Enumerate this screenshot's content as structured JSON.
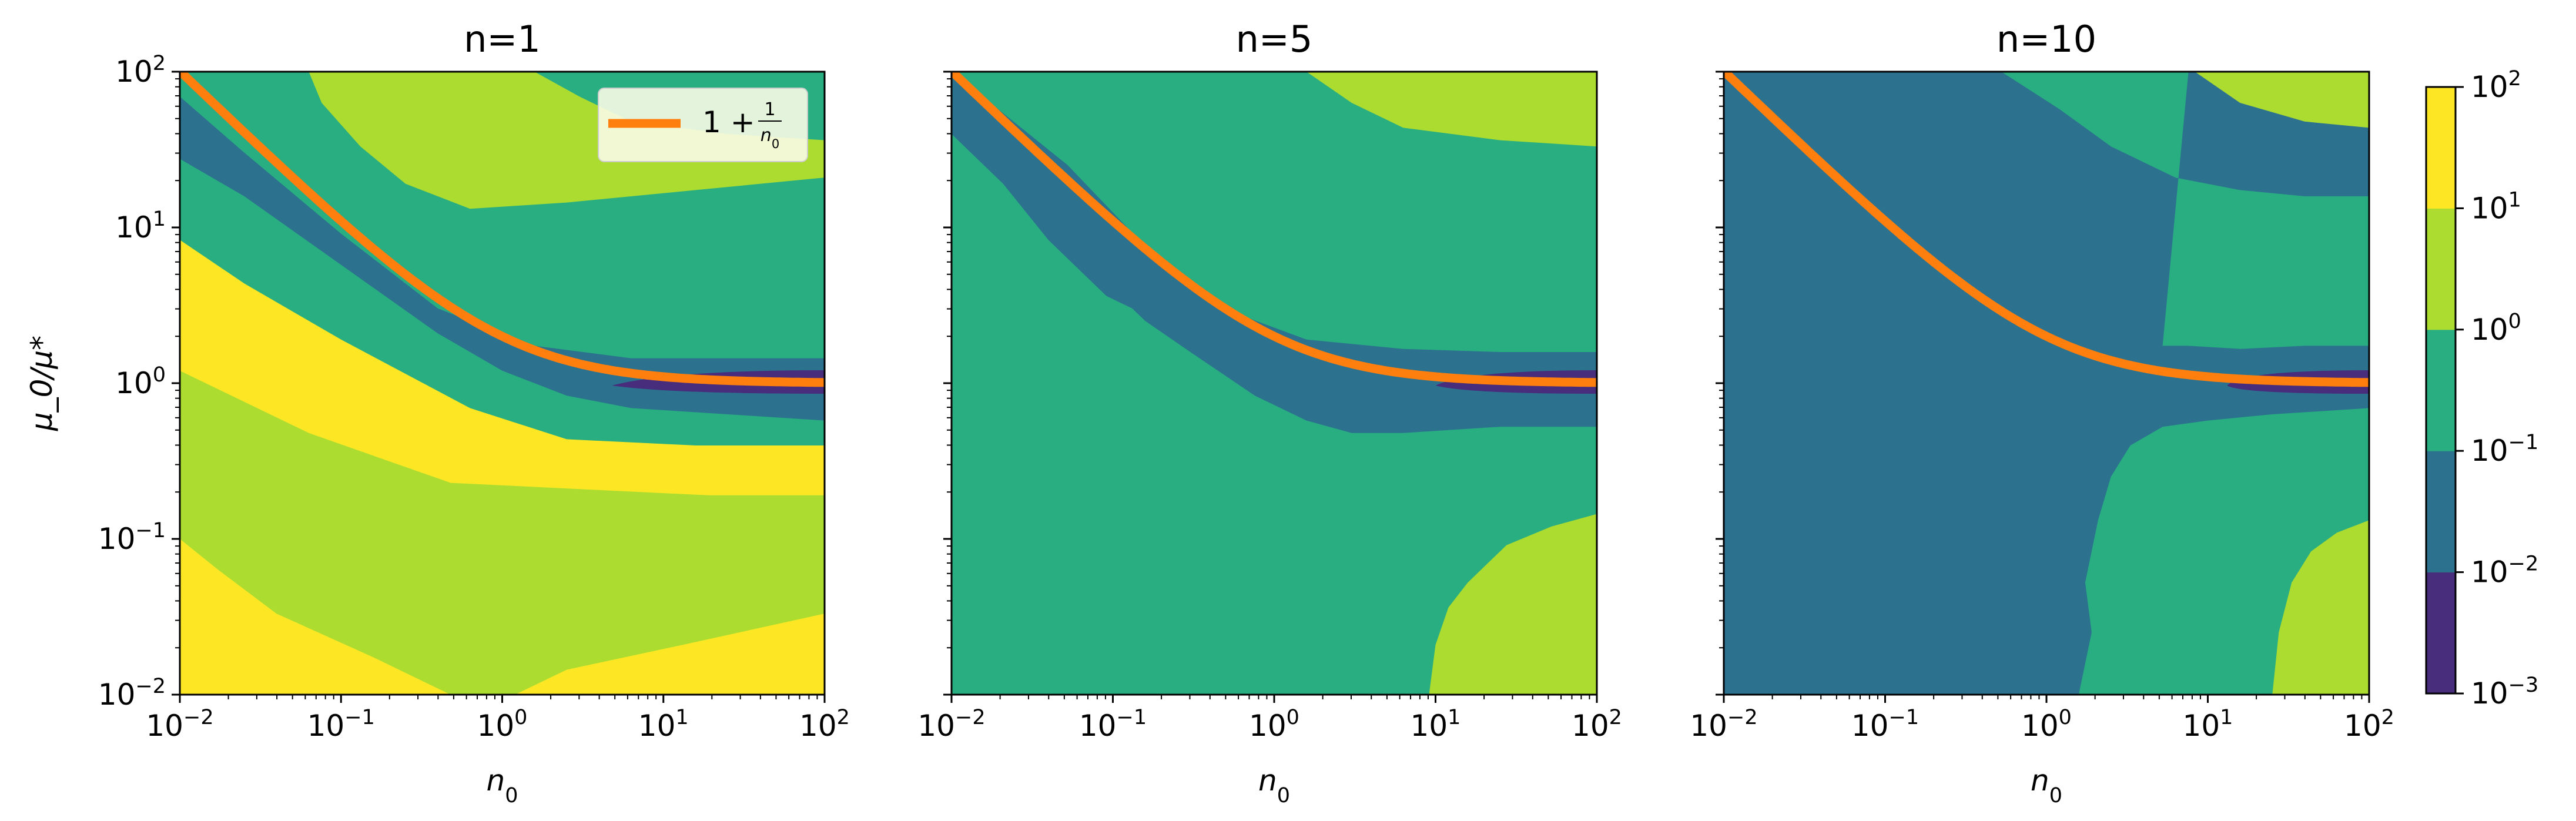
{
  "chart_data": [
    {
      "type": "heatmap",
      "title": "n=1",
      "xlabel": "n_0",
      "ylabel": "μ_0/μ*",
      "x_scale": "log",
      "y_scale": "log",
      "xlim": [
        0.01,
        100
      ],
      "ylim": [
        0.01,
        100
      ],
      "x_ticks": [
        "10^-2",
        "10^-1",
        "10^0",
        "10^1",
        "10^2"
      ],
      "y_ticks": [
        "10^-2",
        "10^-1",
        "10^0",
        "10^1",
        "10^2"
      ],
      "legend": {
        "position": "top-right",
        "entries": [
          {
            "label": "1 + 1/n_0",
            "color": "#ff7f0e"
          }
        ]
      },
      "line": {
        "label": "1 + 1/n_0",
        "color": "#ff7f0e",
        "x_range": [
          0.01,
          100
        ]
      },
      "regions": [
        {
          "level": "10^1 – 10^2",
          "color": "#fde725",
          "description": "lower-left corner below about 0.3 at small n_0, and lower-right corner below about 0.035"
        },
        {
          "level": "10^0 – 10^1",
          "color": "#addc30",
          "description": "upper-right area above the second band; lower area between about 0.01 and 0.22–8"
        },
        {
          "level": "10^-1 – 10^0",
          "color": "#28ae80",
          "description": "bands above and below the curve"
        },
        {
          "level": "10^-2 – 10^-1",
          "color": "#2c728e",
          "description": "band around the curve"
        },
        {
          "level": "10^-3 – 10^-2",
          "color": "#472d7b",
          "description": "narrow sliver near μ_0/μ* ≈ 1 for n_0 > 3"
        }
      ]
    },
    {
      "type": "heatmap",
      "title": "n=5",
      "xlabel": "n_0",
      "x_scale": "log",
      "y_scale": "log",
      "xlim": [
        0.01,
        100
      ],
      "ylim": [
        0.01,
        100
      ],
      "x_ticks": [
        "10^-2",
        "10^-1",
        "10^0",
        "10^1",
        "10^2"
      ],
      "line": {
        "label": "1 + 1/n_0",
        "color": "#ff7f0e",
        "x_range": [
          0.01,
          100
        ]
      },
      "regions": [
        {
          "level": "10^0 – 10^1",
          "color": "#addc30",
          "description": "top-right area above about 20, and lower-right area starting near n_0 ≈ 9"
        },
        {
          "level": "10^-1 – 10^0",
          "color": "#28ae80",
          "description": "most of the panel"
        },
        {
          "level": "10^-2 – 10^-1",
          "color": "#2c728e",
          "description": "band around the curve, widening to about 0.5–2"
        },
        {
          "level": "10^-3 – 10^-2",
          "color": "#472d7b",
          "description": "narrow sliver near μ_0/μ* ≈ 1 for n_0 > 10"
        }
      ]
    },
    {
      "type": "heatmap",
      "title": "n=10",
      "xlabel": "n_0",
      "x_scale": "log",
      "y_scale": "log",
      "xlim": [
        0.01,
        100
      ],
      "ylim": [
        0.01,
        100
      ],
      "x_ticks": [
        "10^-2",
        "10^-1",
        "10^0",
        "10^1",
        "10^2"
      ],
      "line": {
        "label": "1 + 1/n_0",
        "color": "#ff7f0e",
        "x_range": [
          0.01,
          100
        ]
      },
      "regions": [
        {
          "level": "10^0 – 10^1",
          "color": "#addc30",
          "description": "top-right corner above about 30, and lower-right corner starting near n_0 ≈ 28"
        },
        {
          "level": "10^-1 – 10^0",
          "color": "#28ae80",
          "description": "upper band above the curve and lower-right region starting near n_0 ≈ 1.5"
        },
        {
          "level": "10^-2 – 10^-1",
          "color": "#2c728e",
          "description": "left and lower part of the panel and the band around the curve"
        },
        {
          "level": "10^-3 – 10^-2",
          "color": "#472d7b",
          "description": "narrow sliver near μ_0/μ* ≈ 1 for n_0 > 12"
        }
      ]
    }
  ],
  "colorbar": {
    "ticks": [
      "10^-3",
      "10^-2",
      "10^-1",
      "10^0",
      "10^1",
      "10^2"
    ],
    "colors": [
      "#472d7b",
      "#2c728e",
      "#28ae80",
      "#addc30",
      "#fde725"
    ]
  }
}
